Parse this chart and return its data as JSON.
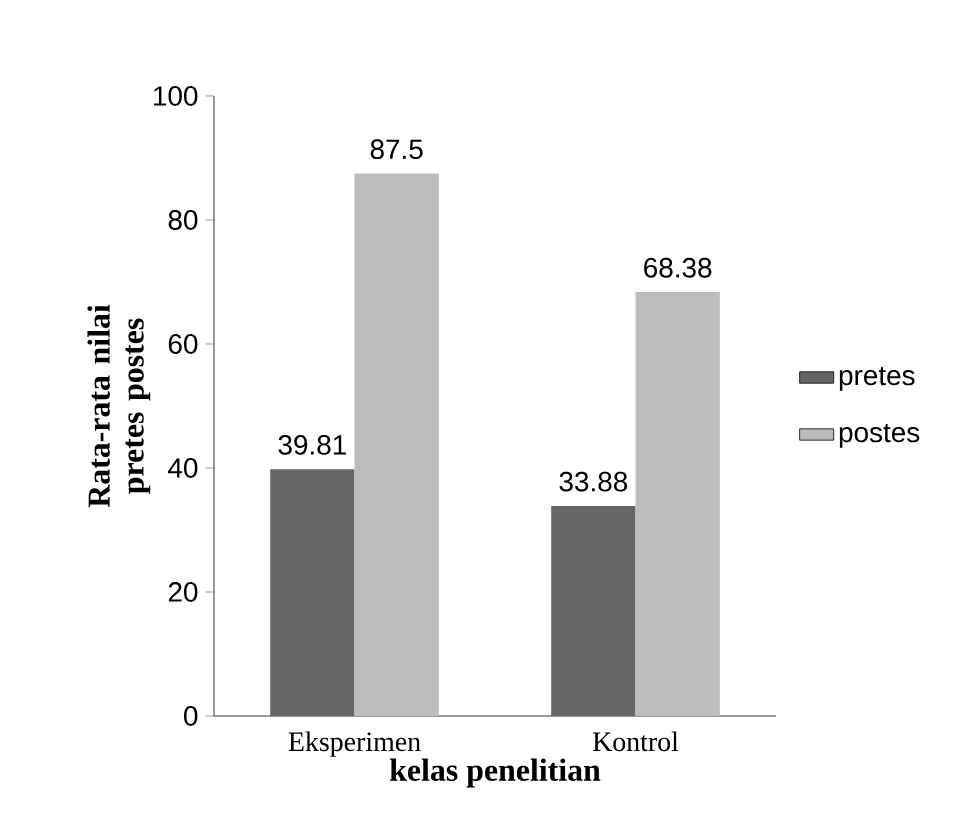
{
  "chart_data": {
    "type": "bar",
    "xlabel": "kelas penelitian",
    "ylabel": "Rata-rata nilai pretes postes",
    "categories": [
      "Eksperimen",
      "Kontrol"
    ],
    "series": [
      {
        "name": "pretes",
        "color": "#666666",
        "values": [
          39.81,
          33.88
        ]
      },
      {
        "name": "postes",
        "color": "#bcbcbc",
        "values": [
          87.5,
          68.38
        ]
      }
    ],
    "ylim": [
      0,
      100
    ],
    "yticks": [
      0,
      20,
      40,
      60,
      80,
      100
    ],
    "grid": false,
    "legend": "right",
    "data_labels": true
  }
}
